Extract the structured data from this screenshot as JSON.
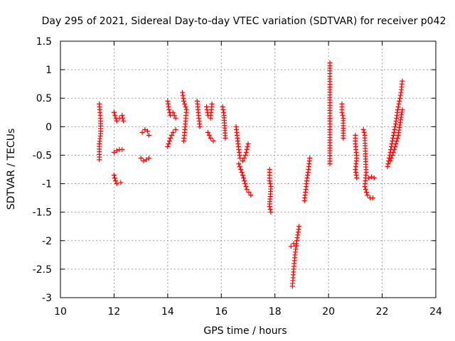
{
  "chart_data": {
    "type": "scatter",
    "title": "Day 295 of 2021, Sidereal Day-to-day VTEC variation (SDTVAR) for receiver p042",
    "xlabel": "GPS time / hours",
    "ylabel": "SDTVAR / TECUs",
    "xlim": [
      10,
      24
    ],
    "ylim": [
      -3,
      1.5
    ],
    "xticks": [
      10,
      12,
      14,
      16,
      18,
      20,
      22,
      24
    ],
    "xtick_labels": [
      "10",
      "12",
      "14",
      "16",
      "18",
      "20",
      "22",
      "24"
    ],
    "yticks": [
      -3,
      -2.5,
      -2,
      -1.5,
      -1,
      -0.5,
      0,
      0.5,
      1,
      1.5
    ],
    "ytick_labels": [
      "-3",
      "-2.5",
      "-2",
      "-1.5",
      "-1",
      "-0.5",
      "0",
      "0.5",
      "1",
      "1.5"
    ],
    "grid": true,
    "marker": "+",
    "color": "#ff0000",
    "series": [
      {
        "name": "SDTVAR",
        "segments": [
          [
            [
              11.45,
              0.4
            ],
            [
              11.5,
              0.1
            ],
            [
              11.5,
              -0.12
            ],
            [
              11.45,
              -0.3
            ],
            [
              11.45,
              -0.58
            ]
          ],
          [
            [
              12.0,
              0.25
            ],
            [
              12.1,
              0.1
            ],
            [
              12.2,
              0.15
            ],
            [
              12.3,
              0.2
            ],
            [
              12.35,
              0.1
            ]
          ],
          [
            [
              12.0,
              -0.45
            ],
            [
              12.1,
              -0.42
            ],
            [
              12.2,
              -0.4
            ],
            [
              12.3,
              -0.4
            ]
          ],
          [
            [
              12.0,
              -0.85
            ],
            [
              12.05,
              -0.95
            ],
            [
              12.1,
              -1.0
            ],
            [
              12.25,
              -0.98
            ]
          ],
          [
            [
              13.0,
              -0.55
            ],
            [
              13.1,
              -0.6
            ],
            [
              13.2,
              -0.58
            ],
            [
              13.3,
              -0.55
            ]
          ],
          [
            [
              13.05,
              -0.1
            ],
            [
              13.15,
              -0.05
            ],
            [
              13.25,
              -0.08
            ],
            [
              13.3,
              -0.15
            ]
          ],
          [
            [
              14.0,
              0.45
            ],
            [
              14.05,
              0.3
            ],
            [
              14.1,
              0.2
            ],
            [
              14.2,
              0.25
            ],
            [
              14.3,
              0.15
            ]
          ],
          [
            [
              14.0,
              -0.35
            ],
            [
              14.1,
              -0.2
            ],
            [
              14.2,
              -0.1
            ],
            [
              14.3,
              -0.05
            ]
          ],
          [
            [
              14.55,
              0.6
            ],
            [
              14.6,
              0.45
            ],
            [
              14.7,
              0.3
            ],
            [
              14.65,
              0.0
            ],
            [
              14.6,
              -0.25
            ]
          ],
          [
            [
              15.1,
              0.45
            ],
            [
              15.15,
              0.2
            ],
            [
              15.2,
              0.0
            ]
          ],
          [
            [
              15.45,
              0.35
            ],
            [
              15.5,
              0.2
            ],
            [
              15.6,
              0.15
            ],
            [
              15.65,
              0.4
            ]
          ],
          [
            [
              15.5,
              -0.1
            ],
            [
              15.6,
              -0.2
            ],
            [
              15.7,
              -0.25
            ]
          ],
          [
            [
              16.05,
              0.35
            ],
            [
              16.1,
              0.2
            ],
            [
              16.15,
              -0.2
            ]
          ],
          [
            [
              16.55,
              0.0
            ],
            [
              16.6,
              -0.2
            ],
            [
              16.65,
              -0.4
            ],
            [
              16.7,
              -0.55
            ],
            [
              16.8,
              -0.6
            ],
            [
              16.9,
              -0.5
            ],
            [
              17.0,
              -0.3
            ]
          ],
          [
            [
              16.65,
              -0.65
            ],
            [
              16.8,
              -0.85
            ],
            [
              16.95,
              -1.1
            ],
            [
              17.1,
              -1.2
            ]
          ],
          [
            [
              17.8,
              -0.75
            ],
            [
              17.8,
              -0.95
            ],
            [
              17.85,
              -1.05
            ],
            [
              17.8,
              -1.4
            ],
            [
              17.85,
              -1.5
            ]
          ],
          [
            [
              18.65,
              -2.8
            ],
            [
              18.7,
              -2.5
            ],
            [
              18.75,
              -2.25
            ],
            [
              18.8,
              -2.05
            ],
            [
              18.85,
              -1.9
            ],
            [
              18.9,
              -1.75
            ]
          ],
          [
            [
              18.6,
              -2.1
            ],
            [
              18.7,
              -2.05
            ],
            [
              18.8,
              -2.08
            ]
          ],
          [
            [
              19.1,
              -1.3
            ],
            [
              19.15,
              -1.1
            ],
            [
              19.2,
              -0.9
            ],
            [
              19.25,
              -0.75
            ],
            [
              19.3,
              -0.55
            ]
          ],
          [
            [
              20.05,
              1.12
            ],
            [
              20.05,
              0.65
            ],
            [
              20.05,
              0.1
            ],
            [
              20.05,
              -0.05
            ],
            [
              20.05,
              -0.65
            ]
          ],
          [
            [
              20.5,
              0.4
            ],
            [
              20.5,
              0.25
            ],
            [
              20.55,
              0.15
            ],
            [
              20.55,
              -0.2
            ]
          ],
          [
            [
              21.0,
              -0.15
            ],
            [
              21.0,
              -0.3
            ],
            [
              21.05,
              -0.55
            ],
            [
              21.0,
              -0.75
            ],
            [
              21.05,
              -0.9
            ]
          ],
          [
            [
              21.3,
              -0.05
            ],
            [
              21.35,
              -0.15
            ],
            [
              21.4,
              -0.8
            ],
            [
              21.35,
              -1.05
            ],
            [
              21.45,
              -1.2
            ],
            [
              21.55,
              -1.25
            ],
            [
              21.65,
              -1.25
            ]
          ],
          [
            [
              21.5,
              -0.9
            ],
            [
              21.6,
              -0.88
            ],
            [
              21.7,
              -0.9
            ]
          ],
          [
            [
              22.2,
              -0.7
            ],
            [
              22.3,
              -0.45
            ],
            [
              22.4,
              -0.2
            ],
            [
              22.5,
              0.05
            ],
            [
              22.6,
              0.35
            ],
            [
              22.7,
              0.6
            ],
            [
              22.75,
              0.8
            ]
          ],
          [
            [
              22.3,
              -0.6
            ],
            [
              22.45,
              -0.4
            ],
            [
              22.6,
              -0.15
            ],
            [
              22.75,
              0.3
            ]
          ]
        ]
      }
    ]
  }
}
